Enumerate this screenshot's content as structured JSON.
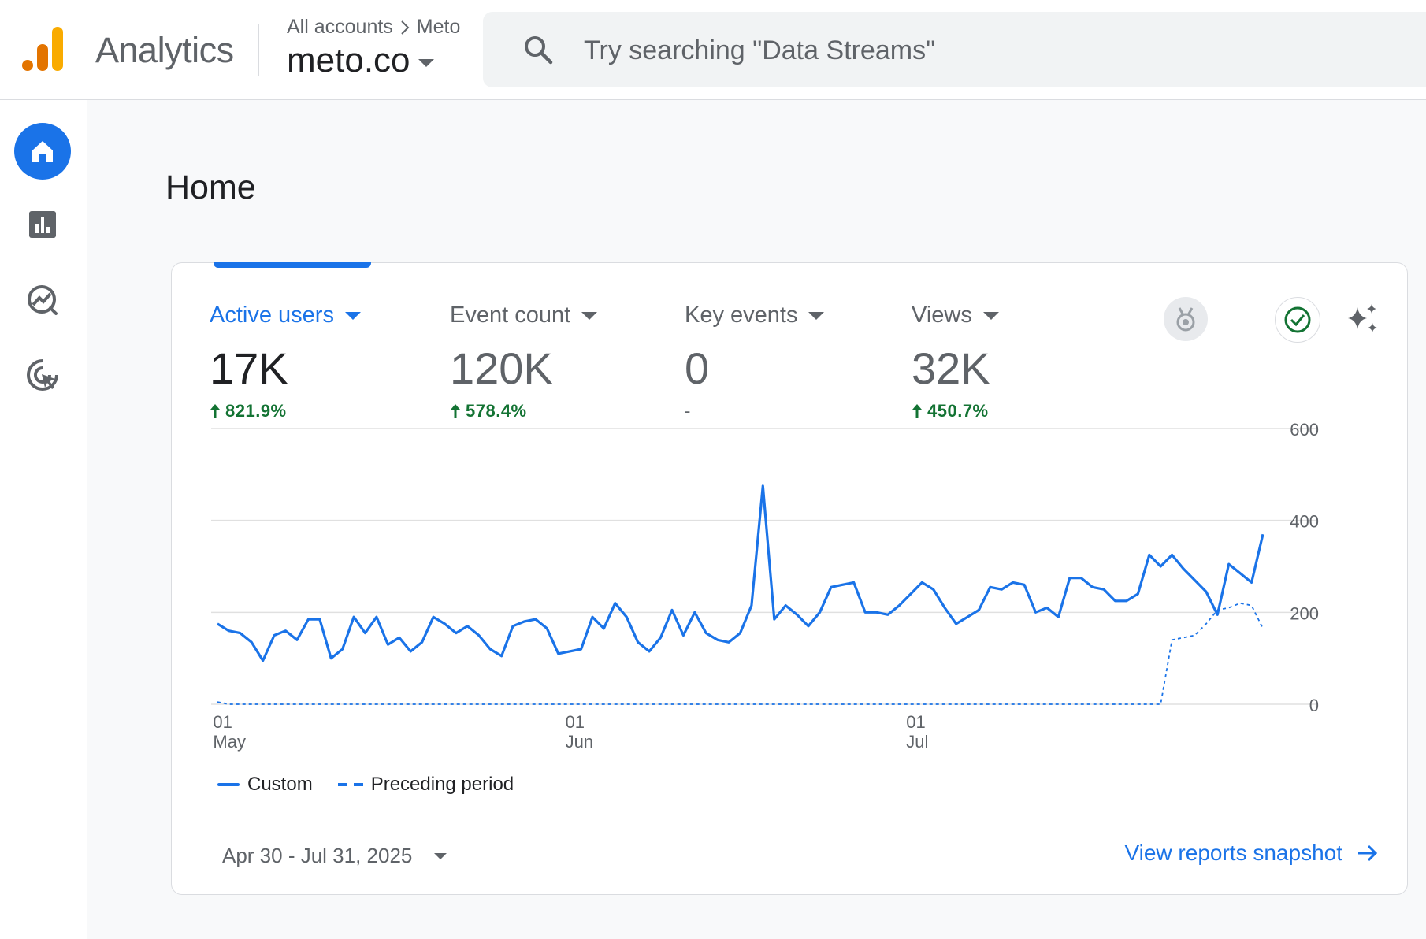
{
  "header": {
    "product_name": "Analytics",
    "breadcrumb_root": "All accounts",
    "breadcrumb_account": "Meto",
    "property_name": "meto.co",
    "search_placeholder": "Try searching \"Data Streams\""
  },
  "sidebar": {
    "items": [
      {
        "icon": "home-icon",
        "label": "Home",
        "active": true
      },
      {
        "icon": "reports-icon",
        "label": "Reports",
        "active": false
      },
      {
        "icon": "explore-icon",
        "label": "Explore",
        "active": false
      },
      {
        "icon": "advertising-icon",
        "label": "Advertising",
        "active": false
      }
    ]
  },
  "page": {
    "title": "Home"
  },
  "card": {
    "metrics": [
      {
        "label": "Active users",
        "value": "17K",
        "change": "821.9%",
        "direction": "up",
        "selected": true
      },
      {
        "label": "Event count",
        "value": "120K",
        "change": "578.4%",
        "direction": "up",
        "selected": false
      },
      {
        "label": "Key events",
        "value": "0",
        "change": "-",
        "direction": "none",
        "selected": false
      },
      {
        "label": "Views",
        "value": "32K",
        "change": "450.7%",
        "direction": "up",
        "selected": false
      }
    ],
    "toolbar_icons": [
      "insights-medal-icon",
      "check-circle-icon",
      "sparkle-icon"
    ],
    "date_range": "Apr 30 - Jul 31, 2025",
    "view_link": "View reports snapshot"
  },
  "colors": {
    "accent": "#1a73e8",
    "positive": "#137333",
    "logo_dark": "#e37400",
    "logo_light": "#f9ab00"
  },
  "chart_data": {
    "type": "line",
    "title": "",
    "xlabel": "",
    "ylabel": "",
    "ylim": [
      0,
      600
    ],
    "y_ticks": [
      0,
      200,
      400,
      600
    ],
    "x_ticks": [
      {
        "index": 1,
        "day": "01",
        "month": "May"
      },
      {
        "index": 32,
        "day": "01",
        "month": "Jun"
      },
      {
        "index": 62,
        "day": "01",
        "month": "Jul"
      }
    ],
    "x_start": "Apr 30, 2025",
    "x_end": "Jul 31, 2025",
    "grid": true,
    "legend_position": "bottom-left",
    "series": [
      {
        "name": "Custom",
        "style": "solid",
        "values": [
          175,
          160,
          155,
          135,
          95,
          150,
          160,
          140,
          185,
          185,
          100,
          120,
          190,
          155,
          190,
          130,
          145,
          115,
          135,
          190,
          175,
          155,
          170,
          150,
          120,
          105,
          170,
          180,
          185,
          165,
          110,
          115,
          120,
          190,
          165,
          220,
          190,
          135,
          115,
          145,
          205,
          150,
          200,
          155,
          140,
          135,
          155,
          215,
          475,
          185,
          215,
          195,
          170,
          200,
          255,
          260,
          265,
          200,
          200,
          195,
          215,
          240,
          265,
          250,
          210,
          175,
          190,
          205,
          255,
          250,
          265,
          260,
          200,
          210,
          190,
          275,
          275,
          255,
          250,
          225,
          225,
          240,
          325,
          300,
          325,
          295,
          270,
          245,
          195,
          305,
          285,
          265,
          370
        ],
        "_partial_note": ""
      },
      {
        "name": "Preceding period",
        "style": "dashed",
        "values": [
          5,
          0,
          0,
          0,
          0,
          0,
          0,
          0,
          0,
          0,
          0,
          0,
          0,
          0,
          0,
          0,
          0,
          0,
          0,
          0,
          0,
          0,
          0,
          0,
          0,
          0,
          0,
          0,
          0,
          0,
          0,
          0,
          0,
          0,
          0,
          0,
          0,
          0,
          0,
          0,
          0,
          0,
          0,
          0,
          0,
          0,
          0,
          0,
          0,
          0,
          0,
          0,
          0,
          0,
          0,
          0,
          0,
          0,
          0,
          0,
          0,
          0,
          0,
          0,
          0,
          0,
          0,
          0,
          0,
          0,
          0,
          0,
          0,
          0,
          0,
          0,
          0,
          0,
          0,
          0,
          0,
          0,
          0,
          0,
          140,
          145,
          150,
          175,
          205,
          210,
          220,
          215,
          165
        ]
      }
    ]
  }
}
